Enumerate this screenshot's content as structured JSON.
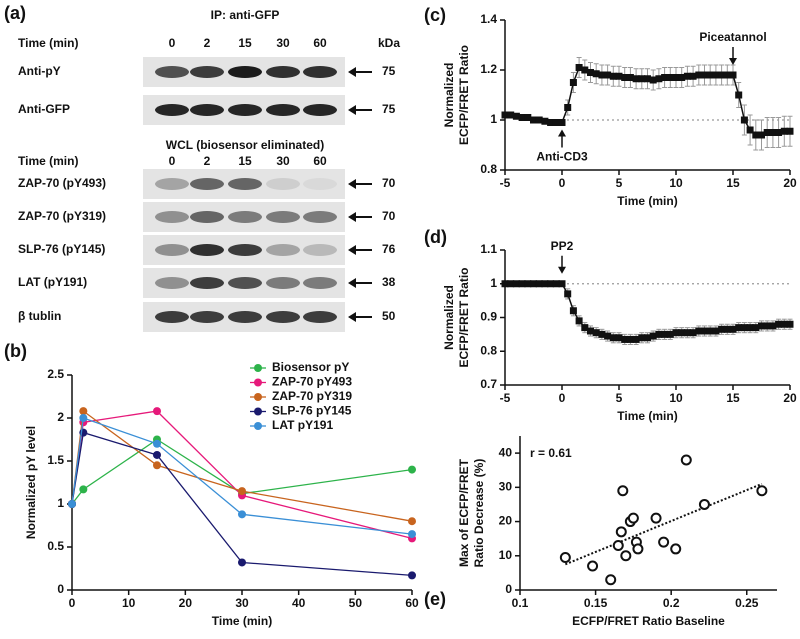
{
  "blot": {
    "panel_label": "(a)",
    "ip_label": "IP: anti-GFP",
    "time_label": "Time (min)",
    "times": [
      0,
      2,
      15,
      30,
      60
    ],
    "kda_label": "kDa",
    "rows_top": [
      {
        "label": "Anti-pY",
        "kda": 75
      },
      {
        "label": "Anti-GFP",
        "kda": 75
      }
    ],
    "wcl_label": "WCL (biosensor eliminated)",
    "rows_bottom": [
      {
        "label": "ZAP-70 (pY493)",
        "kda": 70
      },
      {
        "label": "ZAP-70 (pY319)",
        "kda": 70
      },
      {
        "label": "SLP-76 (pY145)",
        "kda": 76
      },
      {
        "label": "LAT (pY191)",
        "kda": 38
      },
      {
        "label": "β tublin",
        "kda": 50
      }
    ]
  },
  "chart_data": [
    {
      "type": "line",
      "panel_label": "(b)",
      "xlabel": "Time (min)",
      "ylabel_lines": [
        "Normalized pY level"
      ],
      "x": [
        0,
        2,
        15,
        30,
        60
      ],
      "xlim": [
        0,
        60
      ],
      "xticks": [
        0,
        10,
        20,
        30,
        40,
        50,
        60
      ],
      "ylim": [
        0,
        2.5
      ],
      "yticks": [
        0,
        0.5,
        1,
        1.5,
        2,
        2.5
      ],
      "legend": "upper right",
      "series": [
        {
          "name": "Biosensor pY",
          "color": "#2db34a",
          "values": [
            1,
            1.17,
            1.75,
            1.12,
            1.4
          ]
        },
        {
          "name": "ZAP-70 pY493",
          "color": "#e6197a",
          "values": [
            1,
            1.95,
            2.08,
            1.1,
            0.6
          ]
        },
        {
          "name": "ZAP-70 pY319",
          "color": "#c8641e",
          "values": [
            1,
            2.08,
            1.45,
            1.15,
            0.8
          ]
        },
        {
          "name": "SLP-76 pY145",
          "color": "#1a1a6e",
          "values": [
            1,
            1.83,
            1.57,
            0.32,
            0.17
          ]
        },
        {
          "name": "LAT pY191",
          "color": "#3a8fd6",
          "values": [
            1,
            2.0,
            1.7,
            0.88,
            0.65
          ]
        }
      ]
    },
    {
      "type": "errorline",
      "panel_label": "(c)",
      "xlabel": "Time (min)",
      "ylabel_lines": [
        "Normalized",
        "ECFP/FRET Ratio"
      ],
      "color": "#111",
      "xlim": [
        -5,
        20
      ],
      "xticks": [
        -5,
        0,
        5,
        10,
        15,
        20
      ],
      "ylim": [
        0.8,
        1.4
      ],
      "yticks": [
        0.8,
        1,
        1.2,
        1.4
      ],
      "hline": 1,
      "annotations": [
        {
          "text": "Anti-CD3",
          "x": 0,
          "arrow": "up"
        },
        {
          "text": "Piceatannol",
          "x": 15,
          "arrow": "down"
        }
      ],
      "x": [
        -5,
        -4.5,
        -4,
        -3.5,
        -3,
        -2.5,
        -2,
        -1.5,
        -1,
        -0.5,
        0,
        0.5,
        1,
        1.5,
        2,
        2.5,
        3,
        3.5,
        4,
        4.5,
        5,
        5.5,
        6,
        6.5,
        7,
        7.5,
        8,
        8.5,
        9,
        9.5,
        10,
        10.5,
        11,
        11.5,
        12,
        12.5,
        13,
        13.5,
        14,
        14.5,
        15,
        15.5,
        16,
        16.5,
        17,
        17.5,
        18,
        18.5,
        19,
        19.5,
        20
      ],
      "values": [
        1.02,
        1.02,
        1.015,
        1.01,
        1.01,
        1.0,
        1.0,
        0.995,
        0.99,
        0.99,
        0.99,
        1.05,
        1.15,
        1.21,
        1.2,
        1.19,
        1.185,
        1.18,
        1.18,
        1.175,
        1.175,
        1.17,
        1.17,
        1.165,
        1.165,
        1.165,
        1.16,
        1.165,
        1.17,
        1.17,
        1.17,
        1.17,
        1.175,
        1.175,
        1.18,
        1.18,
        1.18,
        1.18,
        1.18,
        1.18,
        1.18,
        1.1,
        1.0,
        0.96,
        0.94,
        0.94,
        0.95,
        0.95,
        0.95,
        0.955,
        0.955
      ],
      "errors": [
        0.01,
        0.01,
        0.01,
        0.01,
        0.01,
        0.01,
        0.01,
        0.01,
        0.01,
        0.01,
        0.01,
        0.03,
        0.04,
        0.04,
        0.04,
        0.04,
        0.04,
        0.04,
        0.04,
        0.04,
        0.04,
        0.04,
        0.04,
        0.04,
        0.04,
        0.04,
        0.04,
        0.04,
        0.04,
        0.04,
        0.04,
        0.04,
        0.04,
        0.04,
        0.04,
        0.04,
        0.04,
        0.04,
        0.04,
        0.04,
        0.04,
        0.05,
        0.06,
        0.06,
        0.06,
        0.06,
        0.06,
        0.06,
        0.06,
        0.06,
        0.06
      ]
    },
    {
      "type": "errorline",
      "panel_label": "(d)",
      "xlabel": "Time (min)",
      "ylabel_lines": [
        "Normalized",
        "ECFP/FRET Ratio"
      ],
      "color": "#111",
      "xlim": [
        -5,
        20
      ],
      "xticks": [
        -5,
        0,
        5,
        10,
        15,
        20
      ],
      "ylim": [
        0.7,
        1.1
      ],
      "yticks": [
        0.7,
        0.8,
        0.9,
        1,
        1.1
      ],
      "hline": 1,
      "annotations": [
        {
          "text": "PP2",
          "x": 0,
          "arrow": "down"
        }
      ],
      "x": [
        -5,
        -4.5,
        -4,
        -3.5,
        -3,
        -2.5,
        -2,
        -1.5,
        -1,
        -0.5,
        0,
        0.5,
        1,
        1.5,
        2,
        2.5,
        3,
        3.5,
        4,
        4.5,
        5,
        5.5,
        6,
        6.5,
        7,
        7.5,
        8,
        8.5,
        9,
        9.5,
        10,
        10.5,
        11,
        11.5,
        12,
        12.5,
        13,
        13.5,
        14,
        14.5,
        15,
        15.5,
        16,
        16.5,
        17,
        17.5,
        18,
        18.5,
        19,
        19.5,
        20
      ],
      "values": [
        1,
        1,
        1,
        1,
        1,
        1,
        1,
        1,
        1,
        1,
        1,
        0.97,
        0.92,
        0.89,
        0.87,
        0.86,
        0.855,
        0.85,
        0.845,
        0.84,
        0.84,
        0.835,
        0.835,
        0.835,
        0.84,
        0.84,
        0.845,
        0.85,
        0.85,
        0.85,
        0.855,
        0.855,
        0.855,
        0.855,
        0.86,
        0.86,
        0.86,
        0.86,
        0.865,
        0.865,
        0.865,
        0.87,
        0.87,
        0.87,
        0.87,
        0.875,
        0.875,
        0.875,
        0.88,
        0.88,
        0.88
      ],
      "errors": [
        0.005,
        0.005,
        0.005,
        0.005,
        0.005,
        0.005,
        0.005,
        0.005,
        0.005,
        0.005,
        0.005,
        0.015,
        0.015,
        0.015,
        0.015,
        0.015,
        0.015,
        0.015,
        0.015,
        0.015,
        0.015,
        0.015,
        0.015,
        0.015,
        0.015,
        0.015,
        0.015,
        0.015,
        0.015,
        0.015,
        0.015,
        0.015,
        0.015,
        0.015,
        0.015,
        0.015,
        0.015,
        0.015,
        0.015,
        0.015,
        0.015,
        0.015,
        0.015,
        0.015,
        0.015,
        0.015,
        0.015,
        0.015,
        0.015,
        0.015,
        0.015
      ]
    },
    {
      "type": "scatter",
      "panel_label": "(e)",
      "xlabel": "ECFP/FRET Ratio Baseline",
      "ylabel_lines": [
        "Max of ECFP/FRET",
        "Ratio Decrease (%)"
      ],
      "color": "#111",
      "xlim": [
        0.1,
        0.27
      ],
      "xticks": [
        0.1,
        0.15,
        0.2,
        0.25
      ],
      "ylim": [
        0,
        45
      ],
      "yticks": [
        0,
        10,
        20,
        30,
        40
      ],
      "annotation": "r = 0.61",
      "x": [
        0.13,
        0.148,
        0.16,
        0.165,
        0.167,
        0.168,
        0.17,
        0.173,
        0.175,
        0.177,
        0.178,
        0.19,
        0.195,
        0.203,
        0.21,
        0.222,
        0.26
      ],
      "values": [
        9.5,
        7,
        3,
        13,
        17,
        29,
        10,
        20,
        21,
        14,
        12,
        21,
        14,
        12,
        38,
        25,
        29
      ],
      "trendline": {
        "x": [
          0.13,
          0.26
        ],
        "y": [
          7.5,
          31
        ]
      }
    }
  ]
}
